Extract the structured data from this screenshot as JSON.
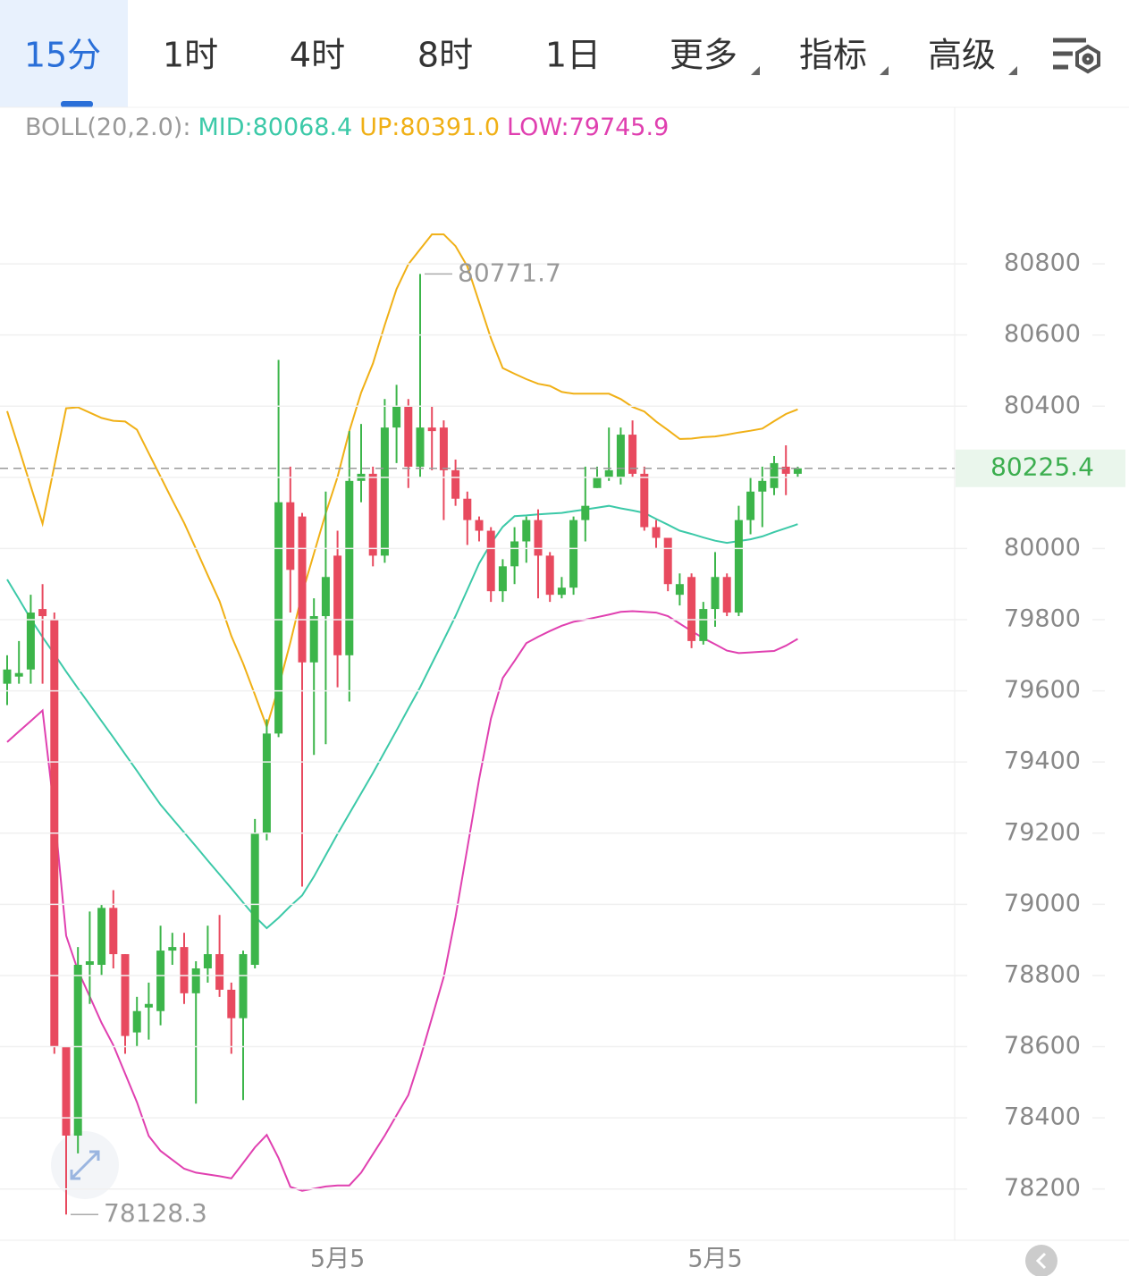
{
  "tabs": [
    "15分",
    "1时",
    "4时",
    "8时",
    "1日",
    "更多",
    "指标",
    "高级"
  ],
  "chart_data": {
    "type": "candlestick",
    "indicator": "BOLL(20,2.0):",
    "up_color": "#3cb54a",
    "down_color": "#e84a5f",
    "categories": [
      null,
      null,
      null,
      null,
      null,
      null,
      null,
      null,
      null,
      null,
      null,
      null,
      null,
      null,
      null,
      null,
      null,
      null,
      null,
      null,
      null,
      null,
      null,
      null,
      null,
      null,
      null,
      null,
      "5月5",
      null,
      null,
      null,
      null,
      null,
      null,
      null,
      null,
      null,
      null,
      null,
      null,
      null,
      null,
      null,
      null,
      null,
      null,
      null,
      null,
      null,
      null,
      null,
      null,
      null,
      null,
      null,
      null,
      null,
      null,
      null,
      "5月5",
      null,
      null,
      null,
      null,
      null,
      null,
      null
    ],
    "open": [
      79620,
      79640,
      79660,
      79830,
      79800,
      78600,
      78350,
      78830,
      78830,
      78990,
      78860,
      78640,
      78710,
      78700,
      78870,
      78880,
      78750,
      78820,
      78860,
      78760,
      78680,
      78830,
      79200,
      79480,
      80130,
      80090,
      79680,
      79810,
      79980,
      79700,
      80190,
      80210,
      79980,
      80340,
      80400,
      80230,
      80340,
      80340,
      80220,
      80140,
      80080,
      80050,
      79880,
      79950,
      80020,
      80080,
      79980,
      79870,
      79890,
      80080,
      80170,
      80200,
      80200,
      80320,
      80210,
      80060,
      80030,
      79870,
      79920,
      79740,
      79830,
      79920,
      79820,
      80080,
      80160,
      80170,
      80230,
      80210
    ],
    "high": [
      79700,
      79740,
      79870,
      79900,
      79820,
      78600,
      78880,
      78980,
      79000,
      79040,
      78860,
      78740,
      78780,
      78940,
      78920,
      78920,
      78840,
      78940,
      78970,
      78780,
      78870,
      79240,
      79520,
      80530,
      80230,
      80100,
      79860,
      80160,
      80050,
      80330,
      80350,
      80230,
      80420,
      80460,
      80420,
      80771.7,
      80400,
      80360,
      80250,
      80160,
      80090,
      80060,
      79970,
      80060,
      80090,
      80110,
      79990,
      79920,
      80090,
      80230,
      80230,
      80340,
      80340,
      80360,
      80230,
      80080,
      80030,
      79930,
      79930,
      79850,
      79990,
      79930,
      80120,
      80200,
      80230,
      80260,
      80290,
      80230
    ],
    "low": [
      79560,
      79620,
      79620,
      79620,
      78580,
      78128.3,
      78300,
      78720,
      78800,
      78820,
      78580,
      78600,
      78620,
      78660,
      78830,
      78720,
      78440,
      78780,
      78740,
      78580,
      78450,
      78820,
      79180,
      79470,
      79820,
      79050,
      79420,
      79450,
      79610,
      79570,
      80130,
      79950,
      79960,
      80240,
      80170,
      80200,
      80220,
      80080,
      80120,
      80010,
      80020,
      79850,
      79850,
      79900,
      79960,
      79860,
      79850,
      79860,
      79870,
      80020,
      80170,
      80190,
      80180,
      80200,
      80050,
      80000,
      79880,
      79840,
      79720,
      79730,
      79780,
      79810,
      79810,
      80040,
      80060,
      80150,
      80150,
      80200
    ],
    "close": [
      79660,
      79650,
      79820,
      79810,
      78600,
      78350,
      78830,
      78840,
      78990,
      78860,
      78630,
      78700,
      78720,
      78870,
      78880,
      78750,
      78820,
      78860,
      78760,
      78680,
      78860,
      79200,
      79480,
      80130,
      79940,
      79680,
      79810,
      79920,
      79700,
      80190,
      80210,
      79980,
      80340,
      80400,
      80230,
      80340,
      80330,
      80220,
      80140,
      80080,
      80050,
      79880,
      79950,
      80020,
      80080,
      79980,
      79870,
      79890,
      80080,
      80120,
      80200,
      80220,
      80320,
      80210,
      80060,
      80030,
      79900,
      79900,
      79740,
      79830,
      79920,
      79820,
      80080,
      80160,
      80190,
      80240,
      80210,
      80225.4
    ],
    "series": [
      {
        "name": "MID:80068.4",
        "color": "#3cc9a8",
        "values": [
          79913,
          79858,
          79802,
          79751,
          79703,
          79654,
          79607,
          79561,
          79515,
          79469,
          79422,
          79375,
          79327,
          79280,
          79241,
          79202,
          79163,
          79123,
          79084,
          79045,
          79005,
          78966,
          78933,
          78962,
          78995,
          79025,
          79078,
          79138,
          79198,
          79255,
          79312,
          79369,
          79429,
          79489,
          79550,
          79610,
          79677,
          79743,
          79810,
          79884,
          79958,
          80014,
          80061,
          80091,
          80093,
          80096,
          80098,
          80100,
          80105,
          80110,
          80115,
          80120,
          80113,
          80107,
          80100,
          80083,
          80067,
          80050,
          80041,
          80031,
          80022,
          80016,
          80021,
          80026,
          80034,
          80046,
          80057,
          80068.4
        ]
      },
      {
        "name": "UP:80391.0",
        "color": "#f0b016",
        "values": [
          80386,
          80281,
          80175,
          80070,
          80232,
          80394,
          80397,
          80382,
          80367,
          80359,
          80357,
          80334,
          80268,
          80202,
          80136,
          80072,
          79999,
          79925,
          79852,
          79754,
          79677,
          79589,
          79499,
          79610,
          79736,
          79873,
          79986,
          80099,
          80201,
          80330,
          80438,
          80520,
          80628,
          80729,
          80799,
          80841,
          80883,
          80883,
          80850,
          80793,
          80692,
          80591,
          80507,
          80491,
          80476,
          80463,
          80457,
          80440,
          80435,
          80435,
          80435,
          80435,
          80420,
          80398,
          80385,
          80357,
          80333,
          80308,
          80309,
          80313,
          80315,
          80320,
          80326,
          80331,
          80337,
          80358,
          80378,
          80391
        ]
      },
      {
        "name": "LOW:79745.9",
        "color": "#e040b0",
        "values": [
          79456,
          79486,
          79515,
          79545,
          79260,
          78912,
          78814,
          78741,
          78667,
          78604,
          78524,
          78444,
          78349,
          78307,
          78282,
          78257,
          78246,
          78241,
          78236,
          78230,
          78273,
          78317,
          78352,
          78287,
          78206,
          78195,
          78201,
          78207,
          78210,
          78210,
          78246,
          78298,
          78350,
          78407,
          78464,
          78567,
          78681,
          78796,
          78965,
          79158,
          79352,
          79522,
          79636,
          79684,
          79734,
          79752,
          79768,
          79783,
          79794,
          79800,
          79807,
          79814,
          79822,
          79824,
          79822,
          79820,
          79810,
          79789,
          79768,
          79748,
          79731,
          79713,
          79706,
          79708,
          79710,
          79712,
          79727,
          79745.9
        ]
      }
    ],
    "ylim": [
      78056,
      81240
    ],
    "yticks": [
      78200,
      78400,
      78600,
      78800,
      79000,
      79200,
      79400,
      79600,
      79800,
      80000,
      80200,
      80400,
      80600,
      80800
    ],
    "grid": true
  }
}
